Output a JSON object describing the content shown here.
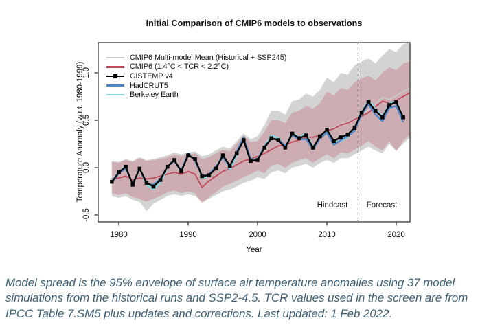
{
  "figure": {
    "title": "Initial Comparison of CMIP6 models to observations",
    "x_axis": {
      "label": "Year"
    },
    "y_axis": {
      "label": "Temperature Anomaly (w.r.t. 1980-1999)"
    },
    "annotations": {
      "hindcast": "Hindcast",
      "forecast": "Forecast"
    }
  },
  "legend": {
    "items": [
      {
        "label": "CMIP6 Multi-model Mean (Historical + SSP245)",
        "color": "#c8c8c8",
        "marker": "none"
      },
      {
        "label": "CMIP6 (1.4°C < TCR < 2.2°C)",
        "color": "#c0485a",
        "marker": "none"
      },
      {
        "label": "GISTEMP v4",
        "color": "#000000",
        "marker": "square"
      },
      {
        "label": "HadCRUT5",
        "color": "#4d87c6",
        "marker": "none"
      },
      {
        "label": "Berkeley Earth",
        "color": "#85dbe2",
        "marker": "none"
      }
    ]
  },
  "caption": "Model spread is the 95% envelope of surface air temperature anomalies using 37 model simulations from the historical runs and SSP2-4.5. TCR values used in the screen are from IPCC Table 7.SM5 plus updates and corrections. Last updated: 1 Feb 2022.",
  "chart_data": {
    "type": "line",
    "title": "Initial Comparison of CMIP6 models to observations",
    "xlabel": "Year",
    "ylabel": "Temperature Anomaly (w.r.t. 1980-1999)",
    "xlim": [
      1977.0,
      2022.1
    ],
    "ylim": [
      -0.57,
      1.32
    ],
    "x_ticks": [
      1980,
      1990,
      2000,
      2010,
      2020
    ],
    "y_tick_values": [
      -0.5,
      0.0,
      0.5,
      1.0
    ],
    "y_tick_labels": [
      "-0.5",
      "0.0",
      "0.5",
      "1.0"
    ],
    "grid": false,
    "legend_position": "top-left",
    "vline": {
      "x": 2014.5,
      "style": "dashed",
      "color": "#666666",
      "left_label": "Hindcast",
      "right_label": "Forecast"
    },
    "x": [
      1979,
      1980,
      1981,
      1982,
      1983,
      1984,
      1985,
      1986,
      1987,
      1988,
      1989,
      1990,
      1991,
      1992,
      1993,
      1994,
      1995,
      1996,
      1997,
      1998,
      1999,
      2000,
      2001,
      2002,
      2003,
      2004,
      2005,
      2006,
      2007,
      2008,
      2009,
      2010,
      2011,
      2012,
      2013,
      2014,
      2015,
      2016,
      2017,
      2018,
      2019,
      2020,
      2021,
      2022
    ],
    "series": [
      {
        "name": "CMIP6 Multi-model Mean (Historical + SSP245)",
        "color": "#c8c8c8",
        "width": 1.8,
        "marker": "none",
        "values": [
          -0.12,
          -0.11,
          -0.09,
          -0.13,
          -0.11,
          -0.12,
          -0.11,
          -0.09,
          -0.07,
          -0.05,
          -0.07,
          -0.04,
          -0.07,
          -0.21,
          -0.14,
          -0.09,
          -0.04,
          -0.01,
          0.03,
          0.07,
          0.09,
          0.12,
          0.15,
          0.19,
          0.23,
          0.24,
          0.27,
          0.29,
          0.32,
          0.32,
          0.34,
          0.4,
          0.42,
          0.46,
          0.48,
          0.52,
          0.56,
          0.61,
          0.67,
          0.74,
          0.72,
          0.76,
          0.8,
          0.84
        ]
      },
      {
        "name": "CMIP6 (1.4°C < TCR < 2.2°C)",
        "color": "#c0485a",
        "width": 1.8,
        "marker": "none",
        "values": [
          -0.12,
          -0.11,
          -0.09,
          -0.13,
          -0.11,
          -0.12,
          -0.11,
          -0.09,
          -0.07,
          -0.05,
          -0.07,
          -0.04,
          -0.07,
          -0.21,
          -0.14,
          -0.09,
          -0.04,
          -0.01,
          0.03,
          0.07,
          0.09,
          0.12,
          0.15,
          0.19,
          0.23,
          0.24,
          0.27,
          0.29,
          0.32,
          0.32,
          0.34,
          0.39,
          0.41,
          0.45,
          0.47,
          0.51,
          0.54,
          0.58,
          0.64,
          0.7,
          0.68,
          0.71,
          0.75,
          0.79
        ]
      },
      {
        "name": "Berkeley Earth",
        "color": "#85dbe2",
        "width": 2.4,
        "marker": "none",
        "values": [
          -0.14,
          -0.05,
          0.02,
          -0.19,
          -0.01,
          -0.18,
          -0.23,
          -0.16,
          0.0,
          0.08,
          -0.05,
          0.14,
          0.09,
          -0.11,
          -0.09,
          0.0,
          0.14,
          -0.02,
          0.13,
          0.31,
          0.08,
          0.09,
          0.22,
          0.34,
          0.31,
          0.22,
          0.37,
          0.32,
          0.36,
          0.22,
          0.31,
          0.37,
          0.27,
          0.28,
          0.32,
          0.4,
          0.59,
          0.71,
          0.62,
          0.54,
          0.68,
          0.7,
          0.54,
          null
        ]
      },
      {
        "name": "HadCRUT5",
        "color": "#4d87c6",
        "width": 2.4,
        "marker": "none",
        "values": [
          -0.16,
          -0.06,
          -0.01,
          -0.17,
          -0.01,
          -0.17,
          -0.18,
          -0.12,
          0.01,
          0.07,
          -0.03,
          0.15,
          0.07,
          -0.09,
          -0.07,
          0.01,
          0.11,
          0.01,
          0.17,
          0.32,
          0.09,
          0.08,
          0.23,
          0.3,
          0.3,
          0.23,
          0.34,
          0.3,
          0.3,
          0.19,
          0.31,
          0.37,
          0.24,
          0.29,
          0.33,
          0.39,
          0.56,
          0.67,
          0.56,
          0.49,
          0.63,
          0.65,
          0.48,
          null
        ]
      },
      {
        "name": "GISTEMP v4",
        "color": "#000000",
        "width": 2.4,
        "marker": "square",
        "values": [
          -0.15,
          -0.05,
          0.01,
          -0.18,
          -0.01,
          -0.16,
          -0.2,
          -0.13,
          0.01,
          0.08,
          -0.04,
          0.13,
          0.09,
          -0.09,
          -0.08,
          -0.01,
          0.13,
          0.02,
          0.15,
          0.29,
          0.07,
          0.08,
          0.21,
          0.31,
          0.29,
          0.21,
          0.36,
          0.31,
          0.34,
          0.21,
          0.33,
          0.4,
          0.28,
          0.32,
          0.35,
          0.42,
          0.58,
          0.69,
          0.6,
          0.53,
          0.66,
          0.69,
          0.53,
          null
        ]
      }
    ],
    "envelopes": [
      {
        "name": "CMIP6 full ensemble 95% spread",
        "color": "#a8a8a8",
        "opacity": 0.5,
        "upper": [
          0.07,
          0.06,
          0.09,
          0.07,
          0.11,
          0.08,
          0.09,
          0.11,
          0.13,
          0.16,
          0.14,
          0.16,
          0.17,
          0.12,
          0.14,
          0.18,
          0.22,
          0.2,
          0.28,
          0.36,
          0.3,
          0.33,
          0.45,
          0.6,
          0.6,
          0.56,
          0.7,
          0.72,
          0.78,
          0.75,
          0.82,
          0.95,
          0.9,
          1.0,
          0.98,
          1.08,
          1.12,
          1.15,
          1.1,
          1.18,
          1.25,
          1.22,
          1.3,
          1.33
        ],
        "lower": [
          -0.3,
          -0.32,
          -0.3,
          -0.34,
          -0.36,
          -0.46,
          -0.38,
          -0.34,
          -0.3,
          -0.28,
          -0.3,
          -0.28,
          -0.3,
          -0.36,
          -0.33,
          -0.29,
          -0.25,
          -0.23,
          -0.2,
          -0.16,
          -0.14,
          -0.1,
          -0.12,
          -0.05,
          -0.03,
          -0.06,
          0.0,
          0.02,
          0.04,
          0.0,
          0.05,
          0.08,
          0.05,
          0.1,
          0.1,
          0.14,
          0.18,
          0.22,
          0.18,
          0.15,
          0.25,
          0.18,
          0.25,
          0.32
        ]
      },
      {
        "name": "CMIP6 TCR-screened 95% spread",
        "color": "#c0485a",
        "opacity": 0.27,
        "upper": [
          0.06,
          0.05,
          0.08,
          0.06,
          0.1,
          0.07,
          0.08,
          0.09,
          0.11,
          0.14,
          0.12,
          0.14,
          0.15,
          0.09,
          0.11,
          0.15,
          0.19,
          0.17,
          0.25,
          0.34,
          0.27,
          0.28,
          0.38,
          0.5,
          0.5,
          0.47,
          0.58,
          0.6,
          0.65,
          0.62,
          0.68,
          0.8,
          0.76,
          0.84,
          0.82,
          0.9,
          0.94,
          0.97,
          0.92,
          1.0,
          1.06,
          1.03,
          1.1,
          1.12
        ],
        "lower": [
          -0.27,
          -0.29,
          -0.27,
          -0.31,
          -0.33,
          -0.36,
          -0.33,
          -0.3,
          -0.26,
          -0.24,
          -0.27,
          -0.25,
          -0.27,
          -0.38,
          -0.31,
          -0.26,
          -0.2,
          -0.17,
          -0.14,
          -0.1,
          -0.07,
          -0.03,
          -0.06,
          0.02,
          0.04,
          0.0,
          0.05,
          0.08,
          0.1,
          0.05,
          0.1,
          0.14,
          0.1,
          0.16,
          0.15,
          0.19,
          0.23,
          0.28,
          0.22,
          0.18,
          0.28,
          0.17,
          0.28,
          0.35
        ]
      }
    ]
  }
}
